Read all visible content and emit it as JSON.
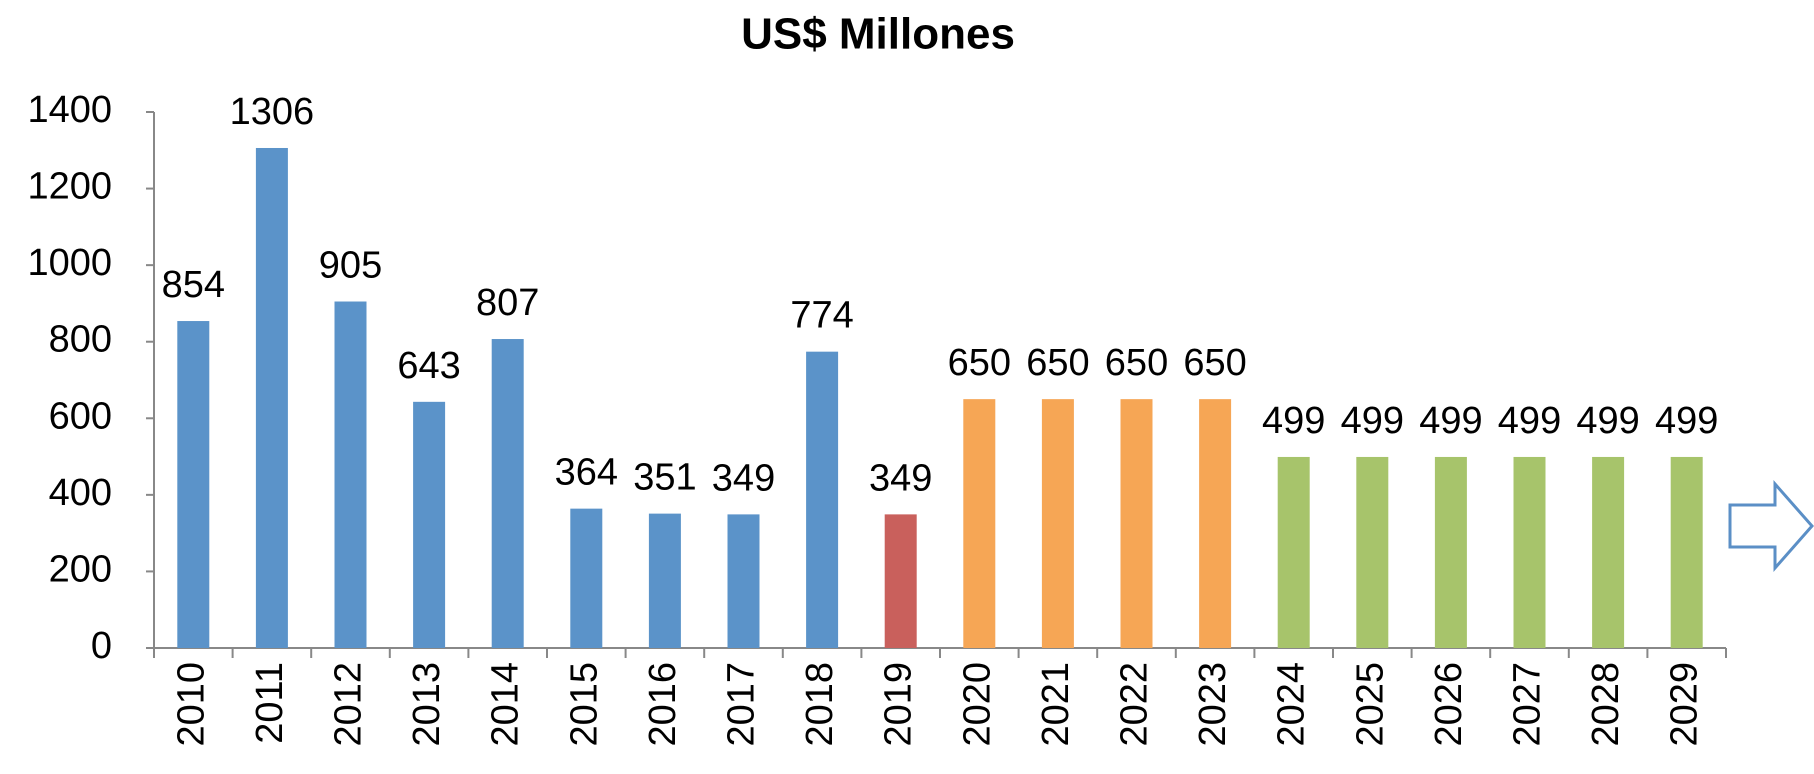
{
  "chart_data": {
    "type": "bar",
    "title": "US$ Millones",
    "categories": [
      "2010",
      "2011",
      "2012",
      "2013",
      "2014",
      "2015",
      "2016",
      "2017",
      "2018",
      "2019",
      "2020",
      "2021",
      "2022",
      "2023",
      "2024",
      "2025",
      "2026",
      "2027",
      "2028",
      "2029"
    ],
    "values": [
      854,
      1306,
      905,
      643,
      807,
      364,
      351,
      349,
      774,
      349,
      650,
      650,
      650,
      650,
      499,
      499,
      499,
      499,
      499,
      499
    ],
    "colors": [
      "#5b93c9",
      "#5b93c9",
      "#5b93c9",
      "#5b93c9",
      "#5b93c9",
      "#5b93c9",
      "#5b93c9",
      "#5b93c9",
      "#5b93c9",
      "#c9605c",
      "#f6a655",
      "#f6a655",
      "#f6a655",
      "#f6a655",
      "#a7c46b",
      "#a7c46b",
      "#a7c46b",
      "#a7c46b",
      "#a7c46b",
      "#a7c46b"
    ],
    "ylim": [
      0,
      1400
    ],
    "yticks": [
      0,
      200,
      400,
      600,
      800,
      1000,
      1200,
      1400
    ],
    "grid": false
  }
}
